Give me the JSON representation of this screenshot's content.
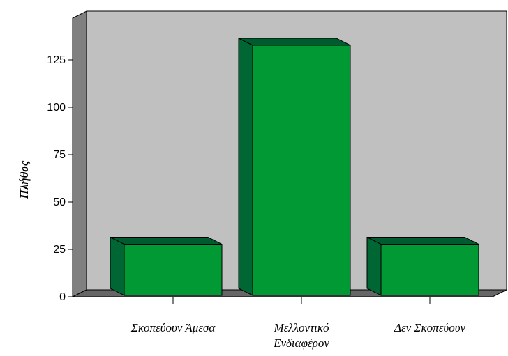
{
  "chart_data": {
    "type": "bar",
    "title": "",
    "xlabel": "",
    "ylabel": "Πλήθος",
    "categories": [
      [
        "Σκοπεύουν Άμεσα"
      ],
      [
        "Μελλοντικό",
        "Ενδιαφέρον"
      ],
      [
        "Δεν Σκοπεύουν"
      ]
    ],
    "values": [
      27,
      132,
      27
    ],
    "ylim": [
      0,
      145
    ],
    "yticks": [
      0,
      25,
      50,
      75,
      100,
      125
    ],
    "ytick_labels": [
      "0",
      "25",
      "50",
      "75",
      "100",
      "125"
    ],
    "style": "3d",
    "grid": false,
    "legend": "none",
    "colors": {
      "bar_front": "#009933",
      "bar_side": "#006633",
      "bar_top": "#005c2e",
      "plot_back": "#c0c0c0",
      "wall_side": "#808080",
      "floor": "#666666"
    }
  }
}
